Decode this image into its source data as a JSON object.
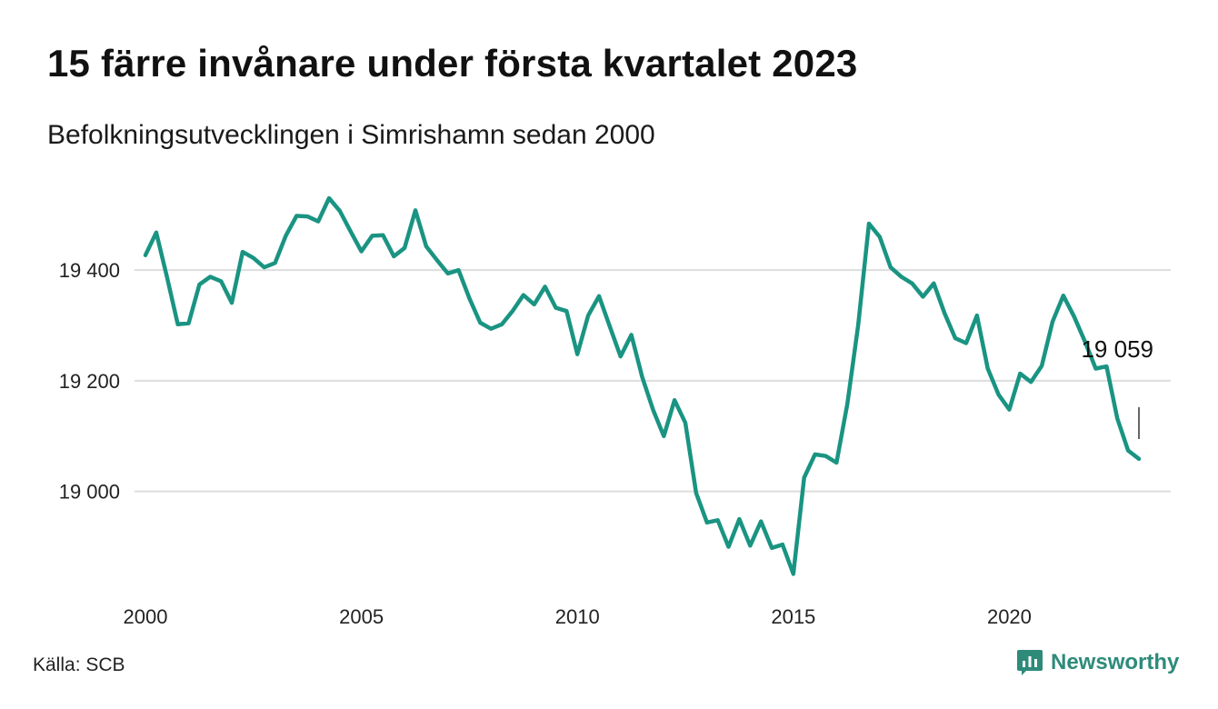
{
  "header": {
    "title": "15 färre invånare under första kvartalet 2023",
    "subtitle": "Befolkningsutvecklingen i Simrishamn sedan 2000"
  },
  "footer": {
    "source": "Källa: SCB",
    "brand": "Newsworthy"
  },
  "colors": {
    "line": "#1a9482",
    "grid": "#dddddd",
    "brand": "#2e8b7a"
  },
  "chart_data": {
    "type": "line",
    "title": "15 färre invånare under första kvartalet 2023",
    "subtitle": "Befolkningsutvecklingen i Simrishamn sedan 2000",
    "xlabel": "",
    "ylabel": "",
    "x_ticks": [
      2000,
      2005,
      2010,
      2015,
      2020
    ],
    "x_tick_labels": [
      "2000",
      "2005",
      "2010",
      "2015",
      "2020"
    ],
    "y_ticks": [
      19000,
      19200,
      19400
    ],
    "y_tick_labels": [
      "19 000",
      "19 200",
      "19 400"
    ],
    "xlim": [
      2000,
      2023
    ],
    "ylim": [
      18850,
      19535
    ],
    "grid": "horizontal",
    "annotation": {
      "text": "19 059",
      "x": 2023.0,
      "y": 19059
    },
    "series": [
      {
        "x": [
          2000.0,
          2000.25,
          2000.5,
          2000.75,
          2001.0,
          2001.25,
          2001.5,
          2001.75,
          2002.0,
          2002.25,
          2002.5,
          2002.75,
          2003.0,
          2003.25,
          2003.5,
          2003.75,
          2004.0,
          2004.25,
          2004.5,
          2004.75,
          2005.0,
          2005.25,
          2005.5,
          2005.75,
          2006.0,
          2006.25,
          2006.5,
          2006.75,
          2007.0,
          2007.25,
          2007.5,
          2007.75,
          2008.0,
          2008.25,
          2008.5,
          2008.75,
          2009.0,
          2009.25,
          2009.5,
          2009.75,
          2010.0,
          2010.25,
          2010.5,
          2010.75,
          2011.0,
          2011.25,
          2011.5,
          2011.75,
          2012.0,
          2012.25,
          2012.5,
          2012.75,
          2013.0,
          2013.25,
          2013.5,
          2013.75,
          2014.0,
          2014.25,
          2014.5,
          2014.75,
          2015.0,
          2015.25,
          2015.5,
          2015.75,
          2016.0,
          2016.25,
          2016.5,
          2016.75,
          2017.0,
          2017.25,
          2017.5,
          2017.75,
          2018.0,
          2018.25,
          2018.5,
          2018.75,
          2019.0,
          2019.25,
          2019.5,
          2019.75,
          2020.0,
          2020.25,
          2020.5,
          2020.75,
          2021.0,
          2021.25,
          2021.5,
          2021.75,
          2022.0,
          2022.25,
          2022.5,
          2022.75,
          2023.0
        ],
        "values": [
          19427,
          19468,
          19387,
          19302,
          19304,
          19374,
          19388,
          19380,
          19341,
          19433,
          19422,
          19405,
          19413,
          19462,
          19498,
          19497,
          19488,
          19530,
          19507,
          19470,
          19434,
          19462,
          19463,
          19425,
          19440,
          19508,
          19443,
          19418,
          19394,
          19400,
          19349,
          19305,
          19294,
          19302,
          19326,
          19355,
          19338,
          19370,
          19332,
          19326,
          19248,
          19318,
          19353,
          19298,
          19244,
          19283,
          19207,
          19148,
          19100,
          19165,
          19124,
          18997,
          18944,
          18948,
          18900,
          18950,
          18902,
          18946,
          18898,
          18904,
          18851,
          19025,
          19067,
          19064,
          19052,
          19158,
          19300,
          19484,
          19460,
          19405,
          19388,
          19376,
          19352,
          19376,
          19322,
          19277,
          19268,
          19318,
          19222,
          19175,
          19148,
          19213,
          19198,
          19227,
          19307,
          19354,
          19316,
          19271,
          19222,
          19226,
          19132,
          19074,
          19059
        ]
      }
    ]
  }
}
